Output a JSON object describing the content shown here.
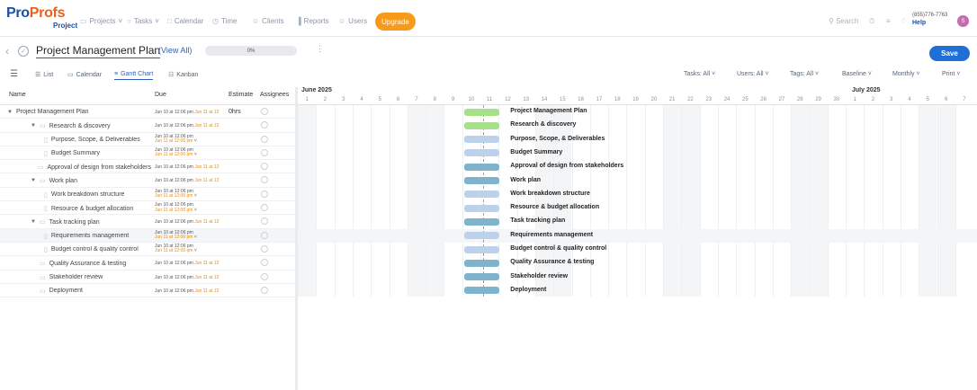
{
  "logo": {
    "pro": "Pro",
    "profs": "Profs",
    "product": "Project"
  },
  "nav": [
    {
      "label": "Projects",
      "icon": "folder-icon"
    },
    {
      "label": "Tasks",
      "icon": "check-circle-icon"
    },
    {
      "label": "Calendar",
      "icon": "calendar-icon"
    },
    {
      "label": "Time",
      "icon": "clock-icon"
    },
    {
      "label": "Clients",
      "icon": "user-icon"
    },
    {
      "label": "Reports",
      "icon": "chart-icon"
    },
    {
      "label": "Users",
      "icon": "users-icon"
    }
  ],
  "upgrade": "Upgrade",
  "search_placeholder": "Search",
  "phone": "(855)776-7763",
  "help": "Help",
  "avatar_initial": "S",
  "project": {
    "title": "Project Management Plan",
    "view_all": "(View All)",
    "progress": "0%",
    "save": "Save"
  },
  "views": [
    {
      "label": "List",
      "icon": "list-icon"
    },
    {
      "label": "Calendar",
      "icon": "calendar-icon"
    },
    {
      "label": "Gantt Chart",
      "icon": "gantt-icon",
      "active": true
    },
    {
      "label": "Kanban",
      "icon": "kanban-icon"
    }
  ],
  "filters": [
    "Tasks: All",
    "Users: All",
    "Tags: All",
    "Baseline",
    "Monthly",
    "Print"
  ],
  "columns": {
    "name": "Name",
    "due": "Due",
    "estimate": "Estimate",
    "assignees": "Assignees"
  },
  "months": [
    "June 2025",
    "July 2025"
  ],
  "june_days": [
    "1",
    "2",
    "3",
    "4",
    "5",
    "6",
    "7",
    "8",
    "9",
    "10",
    "11",
    "12",
    "13",
    "14",
    "15",
    "16",
    "17",
    "18",
    "19",
    "20",
    "21",
    "22",
    "23",
    "24",
    "25",
    "26",
    "27",
    "28",
    "29",
    "30"
  ],
  "july_days": [
    "1",
    "2",
    "3",
    "4",
    "5",
    "6",
    "7"
  ],
  "tasks": [
    {
      "name": "Project Management Plan",
      "level": 0,
      "toggle": true,
      "due1": "Jun 10 at 12:06 pm",
      "due2": "Jun 11 at 12",
      "estimate": "0hrs",
      "bar_color": "#a6e08a"
    },
    {
      "name": "Research & discovery",
      "level": 1,
      "toggle": true,
      "folder": true,
      "due1": "Jun 10 at 12:06 pm",
      "due2": "Jun 11 at 12",
      "bar_color": "#a6e08a"
    },
    {
      "name": "Purpose, Scope, & Deliverables",
      "level": 2,
      "doc": true,
      "due1": "Jun 10 at 12:06 pm",
      "due2": "Jun 11 at 12:06 pm",
      "stacked": true,
      "bar_color": "#bcd2ea"
    },
    {
      "name": "Budget Summary",
      "level": 2,
      "doc": true,
      "due1": "Jun 10 at 12:06 pm",
      "due2": "Jun 11 at 12:06 pm",
      "stacked": true,
      "bar_color": "#bcd2ea"
    },
    {
      "name": "Approval of design from stakeholders",
      "level": 1,
      "folder": true,
      "due1": "Jun 10 at 12:06 pm",
      "due2": "Jun 11 at 12",
      "bar_color": "#7fb3cd"
    },
    {
      "name": "Work plan",
      "level": 1,
      "toggle": true,
      "folder": true,
      "due1": "Jun 10 at 12:06 pm",
      "due2": "Jun 11 at 12",
      "bar_color": "#7fb3cd"
    },
    {
      "name": "Work breakdown structure",
      "level": 2,
      "doc": true,
      "due1": "Jun 10 at 12:06 pm",
      "due2": "Jun 11 at 12:06 pm",
      "stacked": true,
      "bar_color": "#bcd2ea"
    },
    {
      "name": "Resource & budget allocation",
      "level": 2,
      "doc": true,
      "due1": "Jun 10 at 12:06 pm",
      "due2": "Jun 11 at 12:06 pm",
      "stacked": true,
      "bar_color": "#bcd2ea"
    },
    {
      "name": "Task tracking plan",
      "level": 1,
      "toggle": true,
      "folder": true,
      "due1": "Jun 10 at 12:06 pm",
      "due2": "Jun 11 at 12",
      "bar_color": "#7fb3cd"
    },
    {
      "name": "Requirements management",
      "level": 2,
      "doc": true,
      "due1": "Jun 10 at 12:06 pm",
      "due2": "Jun 11 at 12:06 pm",
      "stacked": true,
      "highlight": true,
      "bar_color": "#bcd2ea"
    },
    {
      "name": "Budget control & quality control",
      "level": 2,
      "doc": true,
      "due1": "Jun 10 at 12:06 pm",
      "due2": "Jun 11 at 12:06 pm",
      "stacked": true,
      "bar_color": "#bcd2ea"
    },
    {
      "name": "Quality Assurance & testing",
      "level": 1,
      "folder": true,
      "due1": "Jun 10 at 12:06 pm",
      "due2": "Jun 11 at 12",
      "bar_color": "#7fb3cd"
    },
    {
      "name": "Stakeholder review",
      "level": 1,
      "folder": true,
      "due1": "Jun 10 at 12:06 pm",
      "due2": "Jun 11 at 12",
      "bar_color": "#7fb3cd"
    },
    {
      "name": "Deployment",
      "level": 1,
      "folder": true,
      "due1": "Jun 10 at 12:06 pm",
      "due2": "Jun 11 at 12",
      "bar_color": "#7fb3cd"
    }
  ]
}
